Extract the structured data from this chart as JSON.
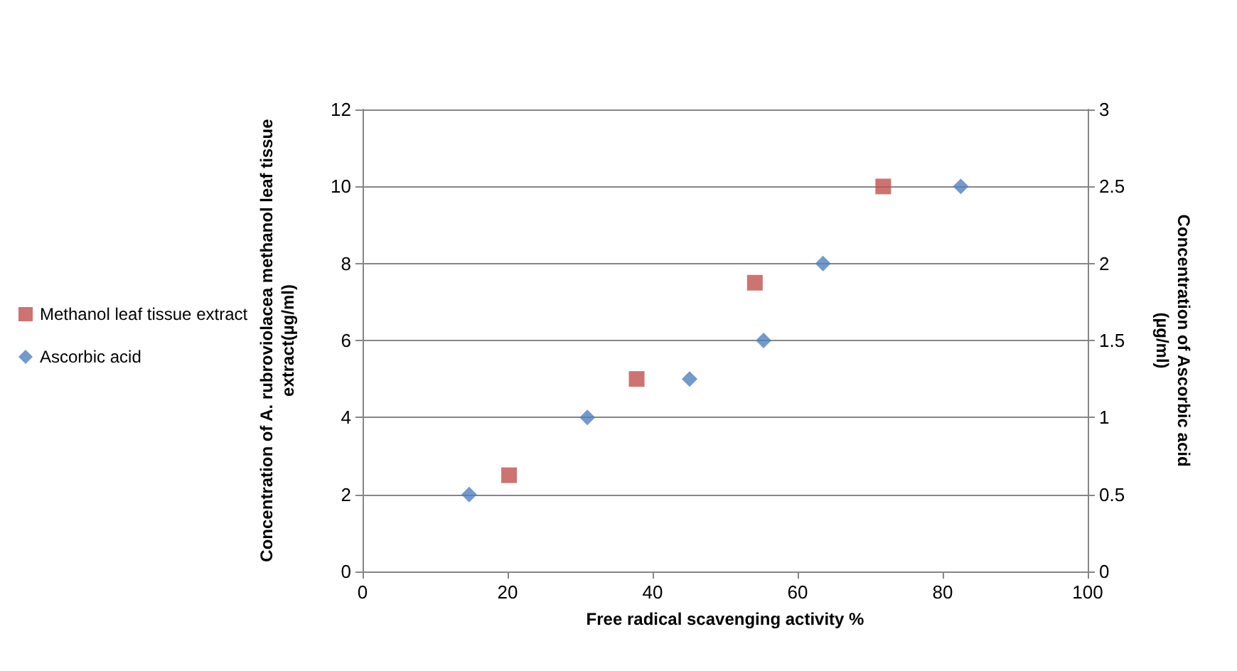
{
  "chart_data": {
    "type": "scatter",
    "xlabel": "Free radical scavenging activity %",
    "ylabel": "Concentration of A. rubroviolacea methanol leaf tissue extract(µg/ml)",
    "y2label": "Concentration of Ascorbic acid (µg/ml)",
    "xlim": [
      0,
      100
    ],
    "xticks": [
      0,
      20,
      40,
      60,
      80,
      100
    ],
    "ylim": [
      0,
      12
    ],
    "yticks": [
      0,
      2,
      4,
      6,
      8,
      10,
      12
    ],
    "y2lim": [
      0,
      3
    ],
    "y2ticks": [
      0,
      0.5,
      1,
      1.5,
      2,
      2.5,
      3
    ],
    "grid": "y",
    "legend": "left",
    "series": [
      {
        "name": "Methanol leaf tissue extract",
        "color": "#c0504d",
        "marker": "square",
        "x": [
          20.2,
          37.8,
          54.1,
          71.8
        ],
        "values": [
          2.5,
          5,
          7.5,
          10
        ]
      },
      {
        "name": "Ascorbic acid",
        "color": "#4f81bd",
        "marker": "diamond",
        "axis": "y2",
        "x": [
          14.7,
          31,
          45.1,
          55.3,
          63.5,
          82.5
        ],
        "values": [
          0.5,
          1,
          1.25,
          1.5,
          2,
          2.5
        ]
      }
    ]
  }
}
